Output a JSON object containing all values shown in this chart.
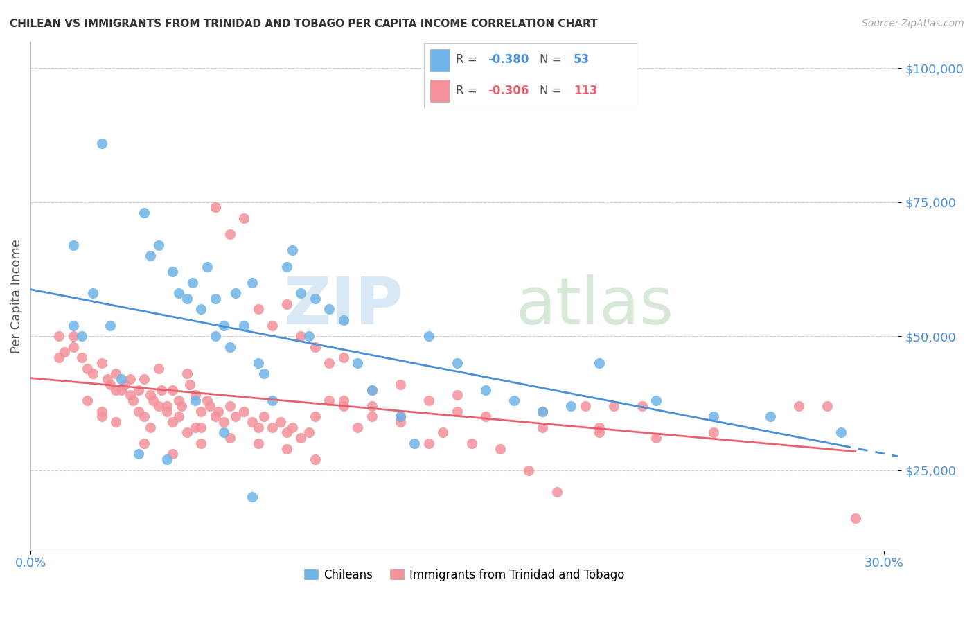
{
  "title": "CHILEAN VS IMMIGRANTS FROM TRINIDAD AND TOBAGO PER CAPITA INCOME CORRELATION CHART",
  "source": "Source: ZipAtlas.com",
  "ylabel": "Per Capita Income",
  "ytick_values": [
    100000,
    75000,
    50000,
    25000
  ],
  "ylim": [
    10000,
    105000
  ],
  "xlim": [
    0.0,
    0.305
  ],
  "legend_label1": "Chileans",
  "legend_label2": "Immigrants from Trinidad and Tobago",
  "r1": "-0.380",
  "n1": "53",
  "r2": "-0.306",
  "n2": "113",
  "color_blue": "#6EB4E8",
  "color_pink": "#F4919A",
  "color_blue_dark": "#4A90D9",
  "color_pink_dark": "#E8606E",
  "color_blue_text": "#4A90D9",
  "color_pink_text": "#E8606E",
  "color_axis": "#4A90D9",
  "blue_scatter_x": [
    0.015,
    0.025,
    0.04,
    0.042,
    0.045,
    0.05,
    0.052,
    0.055,
    0.057,
    0.06,
    0.062,
    0.065,
    0.065,
    0.068,
    0.07,
    0.072,
    0.075,
    0.078,
    0.08,
    0.082,
    0.085,
    0.09,
    0.092,
    0.095,
    0.098,
    0.1,
    0.105,
    0.11,
    0.115,
    0.12,
    0.13,
    0.135,
    0.14,
    0.15,
    0.16,
    0.17,
    0.18,
    0.19,
    0.2,
    0.22,
    0.24,
    0.26,
    0.015,
    0.018,
    0.022,
    0.028,
    0.032,
    0.038,
    0.048,
    0.058,
    0.068,
    0.078,
    0.285
  ],
  "blue_scatter_y": [
    67000,
    86000,
    73000,
    65000,
    67000,
    62000,
    58000,
    57000,
    60000,
    55000,
    63000,
    57000,
    50000,
    52000,
    48000,
    58000,
    52000,
    60000,
    45000,
    43000,
    38000,
    63000,
    66000,
    58000,
    50000,
    57000,
    55000,
    53000,
    45000,
    40000,
    35000,
    30000,
    50000,
    45000,
    40000,
    38000,
    36000,
    37000,
    45000,
    38000,
    35000,
    35000,
    52000,
    50000,
    58000,
    52000,
    42000,
    28000,
    27000,
    38000,
    32000,
    20000,
    32000
  ],
  "pink_scatter_x": [
    0.01,
    0.012,
    0.015,
    0.018,
    0.02,
    0.022,
    0.025,
    0.027,
    0.028,
    0.03,
    0.032,
    0.033,
    0.035,
    0.036,
    0.038,
    0.04,
    0.042,
    0.043,
    0.045,
    0.046,
    0.048,
    0.05,
    0.052,
    0.053,
    0.055,
    0.056,
    0.058,
    0.06,
    0.062,
    0.063,
    0.065,
    0.066,
    0.068,
    0.07,
    0.072,
    0.075,
    0.078,
    0.08,
    0.082,
    0.085,
    0.088,
    0.09,
    0.092,
    0.095,
    0.098,
    0.1,
    0.105,
    0.11,
    0.115,
    0.12,
    0.13,
    0.14,
    0.15,
    0.16,
    0.18,
    0.2,
    0.01,
    0.015,
    0.02,
    0.025,
    0.03,
    0.035,
    0.038,
    0.04,
    0.042,
    0.045,
    0.048,
    0.05,
    0.052,
    0.055,
    0.058,
    0.06,
    0.065,
    0.07,
    0.075,
    0.08,
    0.085,
    0.09,
    0.095,
    0.1,
    0.105,
    0.11,
    0.12,
    0.13,
    0.14,
    0.15,
    0.18,
    0.2,
    0.22,
    0.24,
    0.025,
    0.03,
    0.04,
    0.05,
    0.06,
    0.07,
    0.08,
    0.09,
    0.1,
    0.11,
    0.12,
    0.13,
    0.145,
    0.155,
    0.165,
    0.175,
    0.185,
    0.195,
    0.205,
    0.215,
    0.27,
    0.28,
    0.29
  ],
  "pink_scatter_y": [
    50000,
    47000,
    48000,
    46000,
    44000,
    43000,
    45000,
    42000,
    41000,
    43000,
    40000,
    41000,
    39000,
    38000,
    40000,
    42000,
    39000,
    38000,
    44000,
    40000,
    37000,
    40000,
    38000,
    37000,
    43000,
    41000,
    39000,
    36000,
    38000,
    37000,
    35000,
    36000,
    34000,
    37000,
    35000,
    36000,
    34000,
    33000,
    35000,
    33000,
    34000,
    32000,
    33000,
    31000,
    32000,
    35000,
    38000,
    37000,
    33000,
    35000,
    34000,
    30000,
    36000,
    35000,
    33000,
    32000,
    46000,
    50000,
    38000,
    35000,
    40000,
    42000,
    36000,
    35000,
    33000,
    37000,
    36000,
    34000,
    35000,
    32000,
    33000,
    30000,
    74000,
    69000,
    72000,
    55000,
    52000,
    56000,
    50000,
    48000,
    45000,
    46000,
    40000,
    41000,
    38000,
    39000,
    36000,
    33000,
    31000,
    32000,
    36000,
    34000,
    30000,
    28000,
    33000,
    31000,
    30000,
    29000,
    27000,
    38000,
    37000,
    35000,
    32000,
    30000,
    29000,
    25000,
    21000,
    37000,
    37000,
    37000,
    37000,
    37000,
    16000
  ]
}
